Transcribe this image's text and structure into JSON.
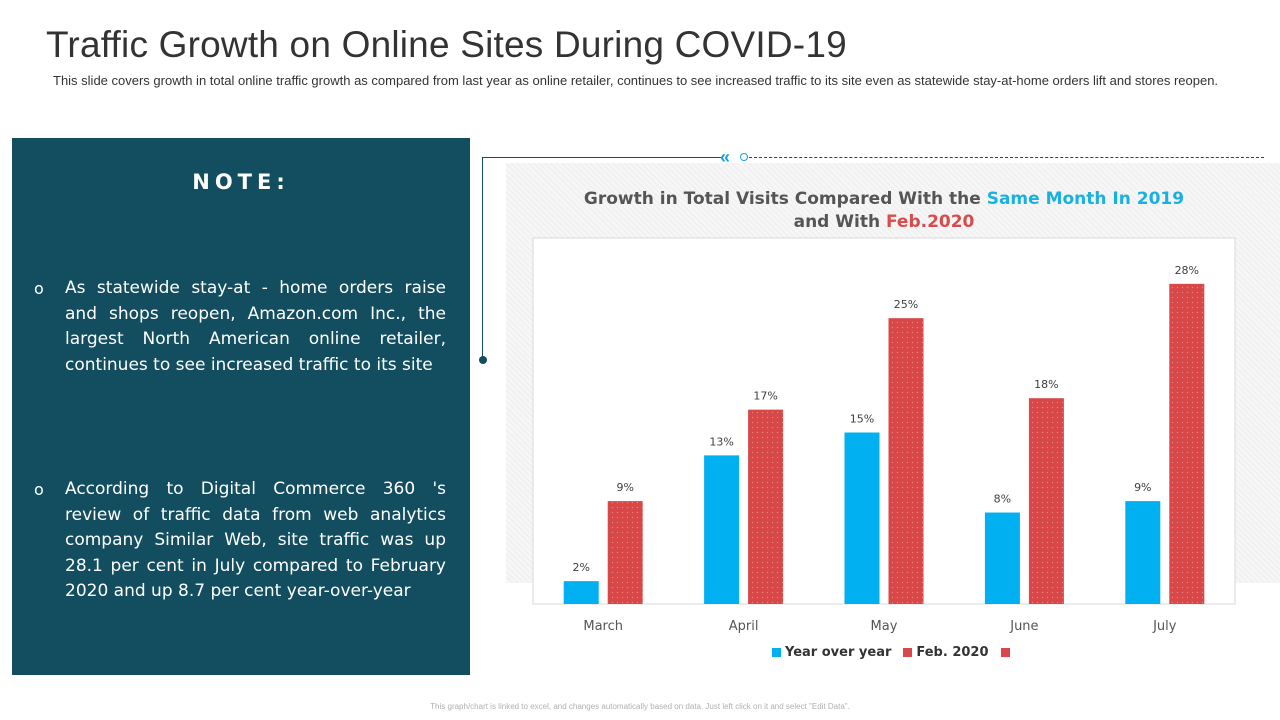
{
  "page": {
    "title": "Traffic Growth on Online Sites During COVID-19",
    "subtitle": "This slide covers growth in total online traffic growth as compared from last year as online retailer, continues to see increased traffic to its site even as statewide stay-at-home orders lift and stores reopen.",
    "footer_note": "This graph/chart is linked to excel, and changes automatically based on data. Just left click on it and select \"Edit Data\"."
  },
  "note": {
    "heading": "NOTE:",
    "bullet_marker": "o",
    "bullets": [
      "As statewide stay-at - home orders raise and shops reopen, Amazon.com Inc., the largest North American online retailer, continues to see increased traffic to its site",
      "According to Digital Commerce 360 's review of traffic data from web analytics company Similar Web, site traffic was up 28.1 per cent in July compared to February 2020 and up 8.7 per cent year-over-year"
    ]
  },
  "decor": {
    "chevron_icon": "«",
    "chevron_color": "#1aa0d8",
    "panel_color": "#124e5f"
  },
  "chart_data": {
    "type": "bar",
    "title_parts": {
      "part1": "Growth in Total Visits Compared With the ",
      "highlight1": "Same Month In 2019",
      "part2": "and With ",
      "highlight2": "Feb.2020"
    },
    "categories": [
      "March",
      "April",
      "May",
      "June",
      "July"
    ],
    "series": [
      {
        "name": "Year over year",
        "color": "#00b0f0",
        "values": [
          2,
          13,
          15,
          8,
          9
        ],
        "labels": [
          "2%",
          "13%",
          "15%",
          "8%",
          "9%"
        ]
      },
      {
        "name": "Feb. 2020",
        "color": "#d94848",
        "values": [
          9,
          17,
          25,
          18,
          28
        ],
        "labels": [
          "9%",
          "17%",
          "25%",
          "18%",
          "28%"
        ]
      }
    ],
    "extra_legend_swatch_color": "#d94848",
    "ylim": [
      0,
      30
    ],
    "grid": false,
    "legend": "bottom"
  }
}
